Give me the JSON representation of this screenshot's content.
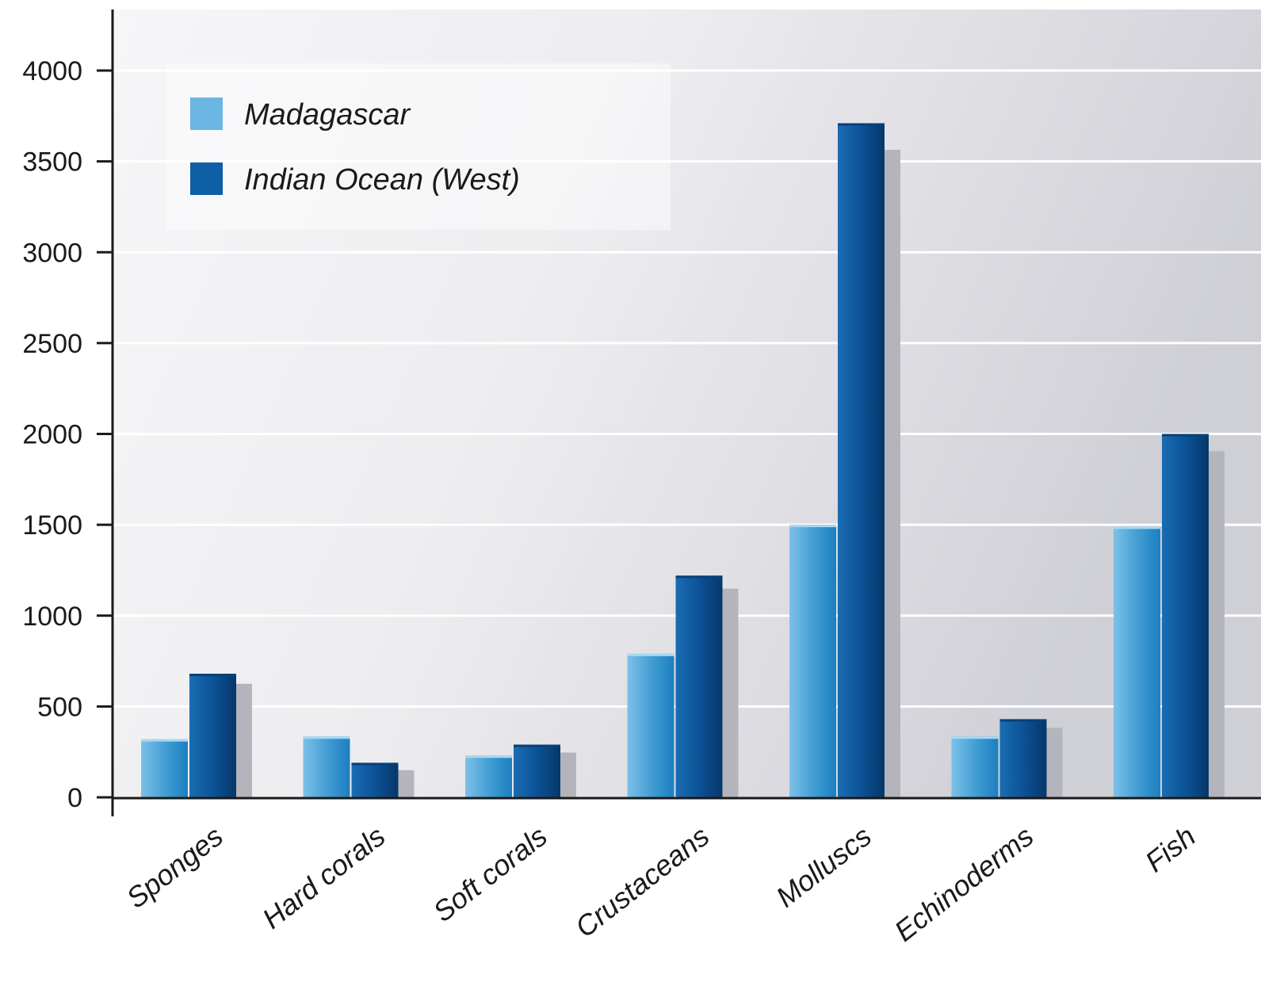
{
  "chart_data": {
    "type": "bar",
    "title": "",
    "xlabel": "",
    "ylabel": "",
    "categories": [
      "Sponges",
      "Hard corals",
      "Soft corals",
      "Crustaceans",
      "Molluscs",
      "Echinoderms",
      "Fish"
    ],
    "series": [
      {
        "name": "Madagascar",
        "values": [
          320,
          335,
          230,
          790,
          1500,
          335,
          1490
        ],
        "color": "#4aa3d8"
      },
      {
        "name": "Indian Ocean (West)",
        "values": [
          680,
          190,
          290,
          1220,
          3710,
          430,
          2000
        ],
        "color": "#0b5a9e"
      }
    ],
    "yticks": [
      0,
      500,
      1000,
      1500,
      2000,
      2500,
      3000,
      3500,
      4000
    ],
    "ylim": [
      0,
      4300
    ],
    "grid": true,
    "legend_position": "top-left"
  }
}
